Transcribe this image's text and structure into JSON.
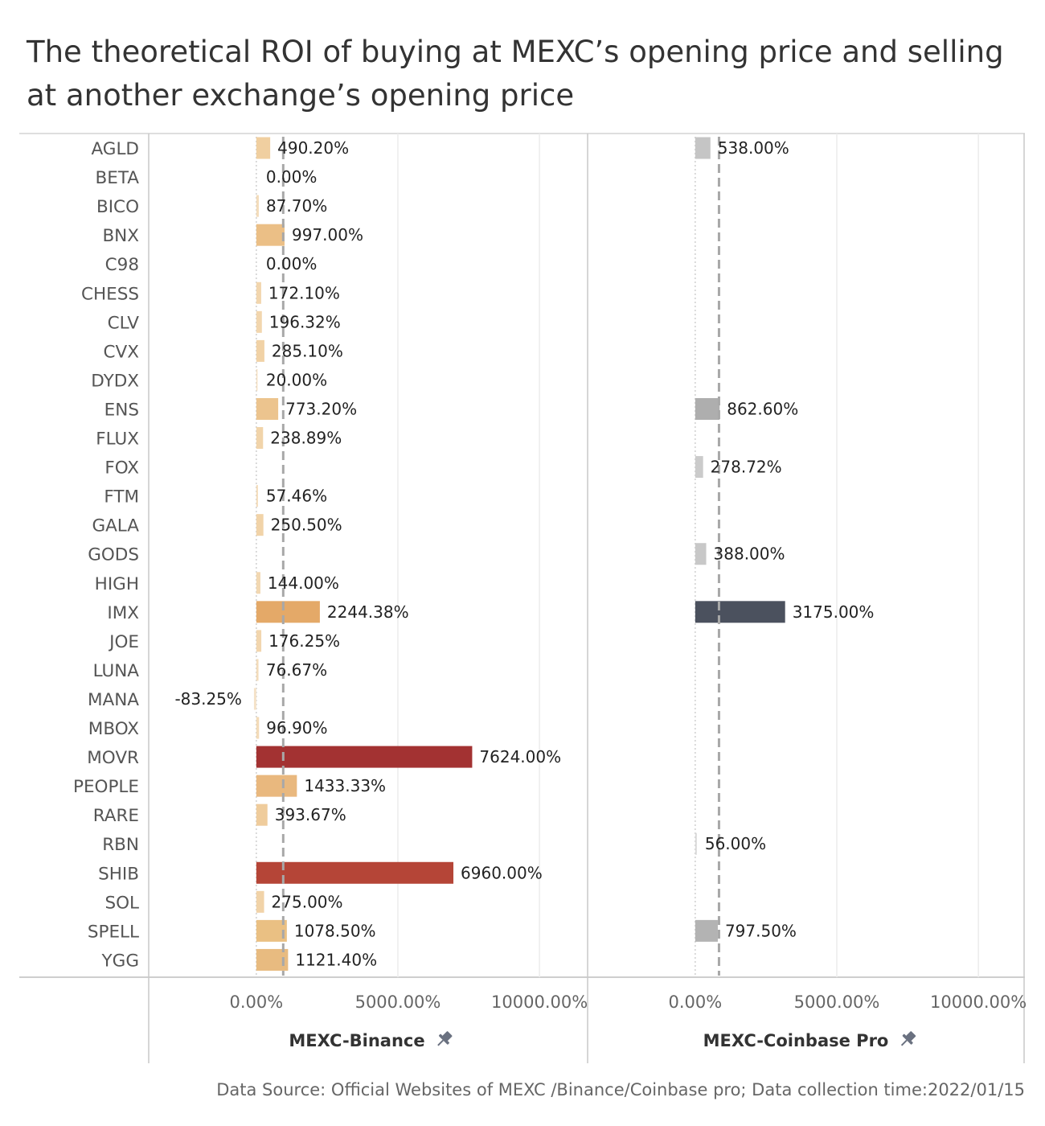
{
  "title": "The theoretical ROI of buying at MEXC’s opening price and selling at another exchange’s opening price",
  "source": "Data Source: Official Websites of MEXC /Binance/Coinbase pro; Data collection time:2022/01/15",
  "chart_data": {
    "type": "bar",
    "orientation": "horizontal",
    "categories": [
      "AGLD",
      "BETA",
      "BICO",
      "BNX",
      "C98",
      "CHESS",
      "CLV",
      "CVX",
      "DYDX",
      "ENS",
      "FLUX",
      "FOX",
      "FTM",
      "GALA",
      "GODS",
      "HIGH",
      "IMX",
      "JOE",
      "LUNA",
      "MANA",
      "MBOX",
      "MOVR",
      "PEOPLE",
      "RARE",
      "RBN",
      "SHIB",
      "SOL",
      "SPELL",
      "YGG"
    ],
    "xlim": [
      -3800,
      11700
    ],
    "ticks": [
      {
        "value": 0,
        "label": "0.00%"
      },
      {
        "value": 5000,
        "label": "5000.00%"
      },
      {
        "value": 10000,
        "label": "10000.00%"
      }
    ],
    "reference_line": "dashed average line",
    "series": [
      {
        "name": "MEXC-Binance",
        "reference_value": 950,
        "values": [
          490.2,
          0.0,
          87.7,
          997.0,
          0.0,
          172.1,
          196.32,
          285.1,
          20.0,
          773.2,
          238.89,
          null,
          57.46,
          250.5,
          null,
          144.0,
          2244.38,
          176.25,
          76.67,
          -83.25,
          96.9,
          7624.0,
          1433.33,
          393.67,
          null,
          6960.0,
          275.0,
          1078.5,
          1121.4
        ],
        "labels": [
          "490.20%",
          "0.00%",
          "87.70%",
          "997.00%",
          "0.00%",
          "172.10%",
          "196.32%",
          "285.10%",
          "20.00%",
          "773.20%",
          "238.89%",
          "",
          "57.46%",
          "250.50%",
          "",
          "144.00%",
          "2244.38%",
          "176.25%",
          "76.67%",
          "-83.25%",
          "96.90%",
          "7624.00%",
          "1433.33%",
          "393.67%",
          "",
          "6960.00%",
          "275.00%",
          "1078.50%",
          "1121.40%"
        ],
        "colors": [
          "#f0cfa0",
          "#f5e0c2",
          "#f3dcbb",
          "#ebbf86",
          "#f5e0c2",
          "#f2d6ae",
          "#f2d6ae",
          "#f1d2a6",
          "#f5e0c2",
          "#ecc48e",
          "#f1d4aa",
          "",
          "#f4dcba",
          "#f1d3a8",
          "",
          "#f2d8b2",
          "#e4a968",
          "#f2d6ae",
          "#f3dcbb",
          "#f5e2c8",
          "#f3dbb8",
          "#a33232",
          "#e9b87e",
          "#efcc9c",
          "#f5e0c2",
          "#b54537",
          "#f1d3a8",
          "#eac083",
          "#e8bb80"
        ]
      },
      {
        "name": "MEXC-Coinbase Pro",
        "reference_value": 840,
        "values": [
          538.0,
          null,
          null,
          null,
          null,
          null,
          null,
          null,
          null,
          862.6,
          null,
          278.72,
          null,
          null,
          388.0,
          null,
          3175.0,
          null,
          null,
          null,
          null,
          null,
          null,
          null,
          56.0,
          null,
          null,
          797.5,
          null
        ],
        "labels": [
          "538.00%",
          "",
          "",
          "",
          "",
          "",
          "",
          "",
          "",
          "862.60%",
          "",
          "278.72%",
          "",
          "",
          "388.00%",
          "",
          "3175.00%",
          "",
          "",
          "",
          "",
          "",
          "",
          "",
          "56.00%",
          "",
          "",
          "797.50%",
          ""
        ],
        "colors": [
          "#c5c5c5",
          "",
          "",
          "",
          "",
          "",
          "",
          "",
          "",
          "#aeaeae",
          "",
          "#cbcbcb",
          "",
          "",
          "#c8c8c8",
          "",
          "#4b515e",
          "",
          "",
          "",
          "",
          "",
          "",
          "",
          "#d9d9d9",
          "",
          "",
          "#b3b3b3",
          ""
        ]
      }
    ]
  }
}
